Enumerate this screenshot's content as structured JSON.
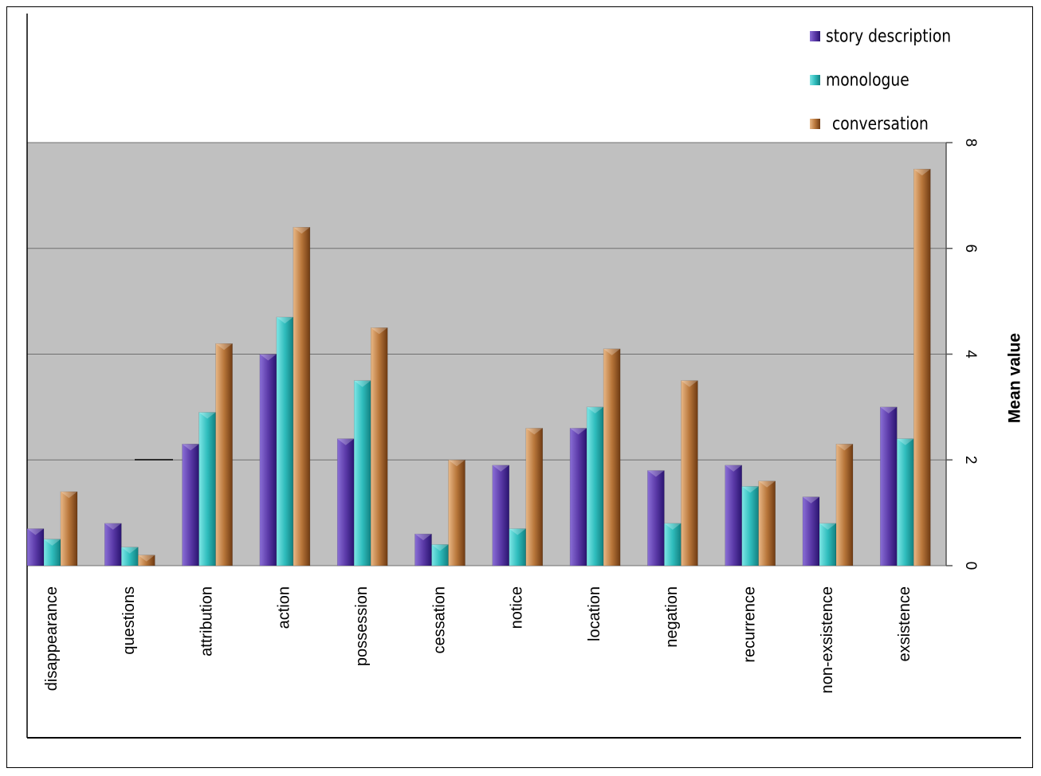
{
  "chart_data": {
    "type": "bar",
    "title": "",
    "xlabel": "",
    "ylabel": "Mean value",
    "ylim": [
      0,
      8
    ],
    "yticks": [
      "0",
      "2",
      "4",
      "6",
      "8"
    ],
    "categories": [
      "disappearance",
      "questions",
      "attribution",
      "action",
      "possession",
      "cessation",
      "notice",
      "location",
      "negation",
      "recurrence",
      "non-exsistence",
      "exsistence"
    ],
    "series": [
      {
        "name": "story description",
        "values": [
          0.7,
          0.8,
          2.3,
          4.0,
          2.4,
          0.6,
          1.9,
          2.6,
          1.8,
          1.9,
          1.3,
          3.0
        ]
      },
      {
        "name": "monologue",
        "values": [
          0.5,
          0.35,
          2.9,
          4.7,
          3.5,
          0.4,
          0.7,
          3.0,
          0.8,
          1.5,
          0.8,
          2.4
        ]
      },
      {
        "name": "conversation",
        "values": [
          1.4,
          0.2,
          4.2,
          6.4,
          4.5,
          2.0,
          2.6,
          4.1,
          3.5,
          1.6,
          2.3,
          7.5
        ]
      }
    ],
    "grid": true,
    "legend_position": "top-right",
    "colors": {
      "story description": "#5b3aa8",
      "monologue": "#2fbdbd",
      "conversation": "#b8763a",
      "plot_background": "#c0c0c0"
    }
  }
}
